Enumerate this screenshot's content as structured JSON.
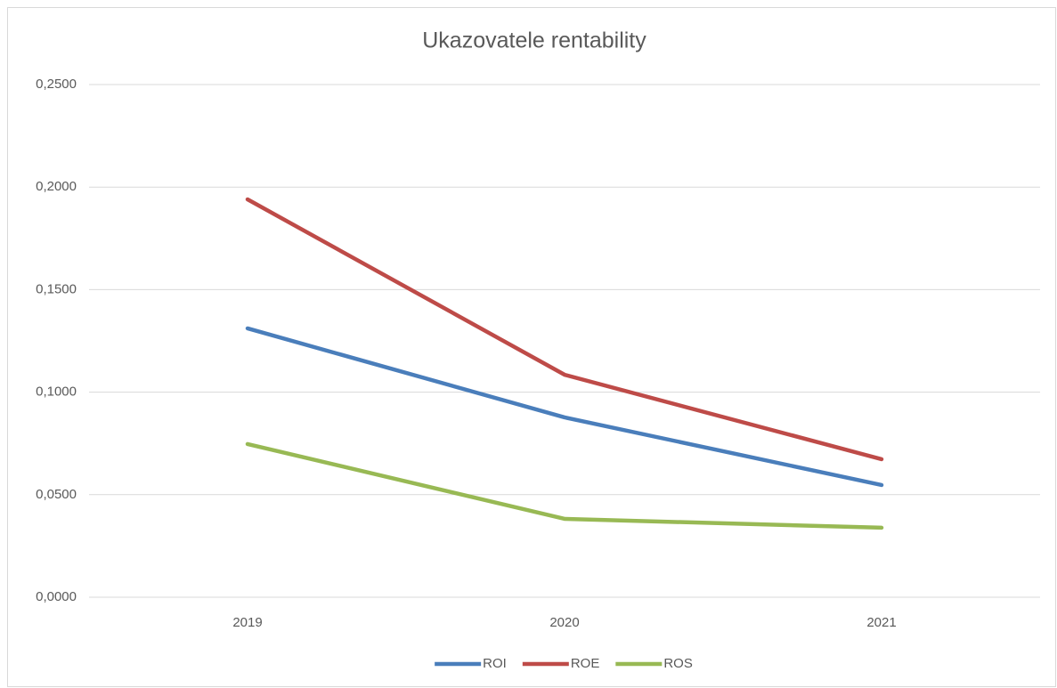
{
  "chart_data": {
    "type": "line",
    "title": "Ukazovatele rentability",
    "categories": [
      "2019",
      "2020",
      "2021"
    ],
    "series": [
      {
        "name": "ROI",
        "color": "#4a7ebb",
        "values": [
          0.1311,
          0.0877,
          0.0547
        ]
      },
      {
        "name": "ROE",
        "color": "#be4b48",
        "values": [
          0.194,
          0.1085,
          0.0673
        ]
      },
      {
        "name": "ROS",
        "color": "#98b954",
        "values": [
          0.0747,
          0.0382,
          0.0339
        ]
      }
    ],
    "ylim": [
      0,
      0.25
    ],
    "yticks": [
      {
        "value": 0,
        "label": "0,0000"
      },
      {
        "value": 0.05,
        "label": "0,0500"
      },
      {
        "value": 0.1,
        "label": "0,1000"
      },
      {
        "value": 0.15,
        "label": "0,1500"
      },
      {
        "value": 0.2,
        "label": "0,2000"
      },
      {
        "value": 0.25,
        "label": "0,2500"
      }
    ],
    "grid": true,
    "legend": "bottom"
  }
}
